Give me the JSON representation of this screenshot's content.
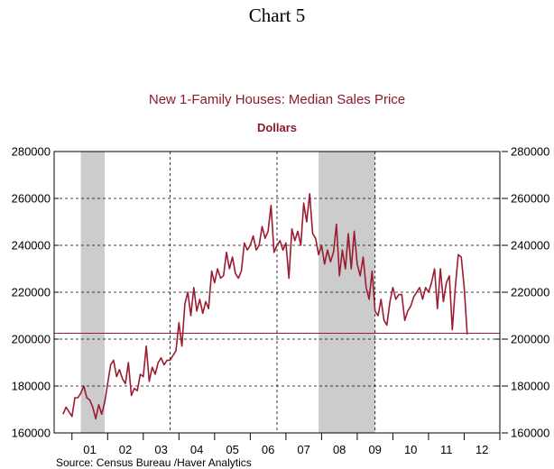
{
  "page_title": "Chart 5",
  "chart_data": {
    "type": "line",
    "title": "New 1-Family Houses: Median Sales Price",
    "subtitle": "Dollars",
    "source": "Source:  Census Bureau /Haver Analytics",
    "x_range": [
      2000.5,
      2013.0
    ],
    "ylim": [
      160000,
      280000
    ],
    "y_ticks": [
      160000,
      180000,
      200000,
      220000,
      240000,
      260000,
      280000
    ],
    "y_tick_labels": [
      "160000",
      "180000",
      "200000",
      "220000",
      "240000",
      "260000",
      "280000"
    ],
    "x_tick_labels": [
      {
        "year": 2001,
        "label": "01"
      },
      {
        "year": 2002,
        "label": "02"
      },
      {
        "year": 2003,
        "label": "03"
      },
      {
        "year": 2004,
        "label": "04"
      },
      {
        "year": 2005,
        "label": "05"
      },
      {
        "year": 2006,
        "label": "06"
      },
      {
        "year": 2007,
        "label": "07"
      },
      {
        "year": 2008,
        "label": "08"
      },
      {
        "year": 2009,
        "label": "09"
      },
      {
        "year": 2010,
        "label": "10"
      },
      {
        "year": 2011,
        "label": "11"
      },
      {
        "year": 2012,
        "label": "12"
      }
    ],
    "vertical_gridlines": [
      2003.75,
      2006.75,
      2009.5
    ],
    "recessions": [
      [
        2001.25,
        2001.917
      ],
      [
        2007.917,
        2009.5
      ]
    ],
    "reference_line": 202500,
    "grid": "dashed",
    "colors": {
      "series": "#9b1c31",
      "title": "#8b1a2b",
      "recession": "#cccccc",
      "reference_line": "#9b1c31"
    },
    "series": [
      {
        "values": [
          [
            2000.75,
            168000
          ],
          [
            2000.833,
            171000
          ],
          [
            2000.917,
            169000
          ],
          [
            2001.0,
            167000
          ],
          [
            2001.083,
            175000
          ],
          [
            2001.167,
            175000
          ],
          [
            2001.25,
            177000
          ],
          [
            2001.333,
            180000
          ],
          [
            2001.417,
            175000
          ],
          [
            2001.5,
            174000
          ],
          [
            2001.583,
            171000
          ],
          [
            2001.667,
            166000
          ],
          [
            2001.75,
            172000
          ],
          [
            2001.833,
            168000
          ],
          [
            2001.917,
            173000
          ],
          [
            2002.0,
            181000
          ],
          [
            2002.083,
            189000
          ],
          [
            2002.167,
            191000
          ],
          [
            2002.25,
            184000
          ],
          [
            2002.333,
            187000
          ],
          [
            2002.417,
            183000
          ],
          [
            2002.5,
            181000
          ],
          [
            2002.583,
            190000
          ],
          [
            2002.667,
            176000
          ],
          [
            2002.75,
            179000
          ],
          [
            2002.833,
            178000
          ],
          [
            2002.917,
            185000
          ],
          [
            2003.0,
            184000
          ],
          [
            2003.083,
            197000
          ],
          [
            2003.167,
            182000
          ],
          [
            2003.25,
            188000
          ],
          [
            2003.333,
            185000
          ],
          [
            2003.417,
            190000
          ],
          [
            2003.5,
            192000
          ],
          [
            2003.583,
            189000
          ],
          [
            2003.667,
            191000
          ],
          [
            2003.75,
            191000
          ],
          [
            2003.833,
            193000
          ],
          [
            2003.917,
            195000
          ],
          [
            2004.0,
            207000
          ],
          [
            2004.083,
            197000
          ],
          [
            2004.167,
            215000
          ],
          [
            2004.25,
            220000
          ],
          [
            2004.333,
            210000
          ],
          [
            2004.417,
            222000
          ],
          [
            2004.5,
            212000
          ],
          [
            2004.583,
            217000
          ],
          [
            2004.667,
            211000
          ],
          [
            2004.75,
            216000
          ],
          [
            2004.833,
            213000
          ],
          [
            2004.917,
            229000
          ],
          [
            2005.0,
            224000
          ],
          [
            2005.083,
            230000
          ],
          [
            2005.167,
            226000
          ],
          [
            2005.25,
            227000
          ],
          [
            2005.333,
            237000
          ],
          [
            2005.417,
            230000
          ],
          [
            2005.5,
            235000
          ],
          [
            2005.583,
            228000
          ],
          [
            2005.667,
            226000
          ],
          [
            2005.75,
            229000
          ],
          [
            2005.833,
            241000
          ],
          [
            2005.917,
            238000
          ],
          [
            2006.0,
            240000
          ],
          [
            2006.083,
            244000
          ],
          [
            2006.167,
            238000
          ],
          [
            2006.25,
            240000
          ],
          [
            2006.333,
            248000
          ],
          [
            2006.417,
            243000
          ],
          [
            2006.5,
            246000
          ],
          [
            2006.583,
            257000
          ],
          [
            2006.667,
            237000
          ],
          [
            2006.75,
            240000
          ],
          [
            2006.833,
            242000
          ],
          [
            2006.917,
            238000
          ],
          [
            2007.0,
            241000
          ],
          [
            2007.083,
            226000
          ],
          [
            2007.167,
            247000
          ],
          [
            2007.25,
            242000
          ],
          [
            2007.333,
            246000
          ],
          [
            2007.417,
            240000
          ],
          [
            2007.5,
            258000
          ],
          [
            2007.583,
            250000
          ],
          [
            2007.667,
            262000
          ],
          [
            2007.75,
            245000
          ],
          [
            2007.833,
            243000
          ],
          [
            2007.917,
            236000
          ],
          [
            2008.0,
            240000
          ],
          [
            2008.083,
            232000
          ],
          [
            2008.167,
            238000
          ],
          [
            2008.25,
            233000
          ],
          [
            2008.333,
            237000
          ],
          [
            2008.417,
            249000
          ],
          [
            2008.5,
            227000
          ],
          [
            2008.583,
            238000
          ],
          [
            2008.667,
            230000
          ],
          [
            2008.75,
            245000
          ],
          [
            2008.833,
            230000
          ],
          [
            2008.917,
            246000
          ],
          [
            2009.0,
            232000
          ],
          [
            2009.083,
            227000
          ],
          [
            2009.167,
            235000
          ],
          [
            2009.25,
            222000
          ],
          [
            2009.333,
            217000
          ],
          [
            2009.417,
            229000
          ],
          [
            2009.5,
            212000
          ],
          [
            2009.583,
            210000
          ],
          [
            2009.667,
            217000
          ],
          [
            2009.75,
            208000
          ],
          [
            2009.833,
            206000
          ],
          [
            2009.917,
            216000
          ],
          [
            2010.0,
            222000
          ],
          [
            2010.083,
            217000
          ],
          [
            2010.167,
            219000
          ],
          [
            2010.25,
            219000
          ],
          [
            2010.333,
            208000
          ],
          [
            2010.417,
            212000
          ],
          [
            2010.5,
            214000
          ],
          [
            2010.583,
            218000
          ],
          [
            2010.667,
            220000
          ],
          [
            2010.75,
            222000
          ],
          [
            2010.833,
            217000
          ],
          [
            2010.917,
            222000
          ],
          [
            2011.0,
            220000
          ],
          [
            2011.083,
            224000
          ],
          [
            2011.167,
            230000
          ],
          [
            2011.25,
            213000
          ],
          [
            2011.333,
            230000
          ],
          [
            2011.417,
            216000
          ],
          [
            2011.5,
            224000
          ],
          [
            2011.583,
            227000
          ],
          [
            2011.667,
            204000
          ],
          [
            2011.75,
            222000
          ],
          [
            2011.833,
            236000
          ],
          [
            2011.917,
            235000
          ],
          [
            2012.0,
            222000
          ],
          [
            2012.083,
            202000
          ]
        ]
      }
    ]
  }
}
